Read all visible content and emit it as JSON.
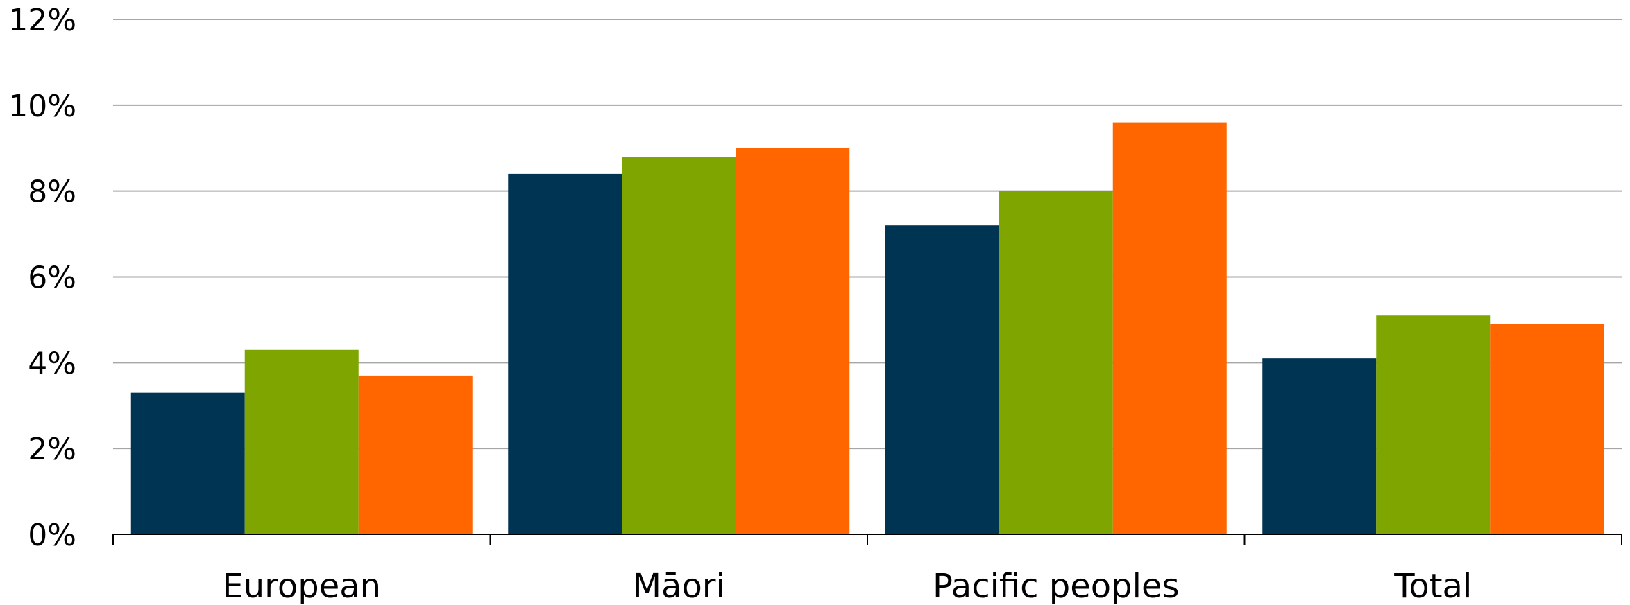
{
  "chart_data": {
    "type": "bar",
    "categories": [
      "European",
      "Māori",
      "Pacific peoples",
      "Total"
    ],
    "series": [
      {
        "values": [
          3.3,
          8.4,
          7.2,
          4.1
        ],
        "color": "#003453"
      },
      {
        "values": [
          4.3,
          8.8,
          8.0,
          5.1
        ],
        "color": "#7fa600"
      },
      {
        "values": [
          3.7,
          9.0,
          9.6,
          4.9
        ],
        "color": "#ff6600"
      }
    ],
    "ylim": [
      0,
      12
    ],
    "yticks": [
      0,
      2,
      4,
      6,
      8,
      10,
      12
    ],
    "ytick_labels": [
      "0%",
      "2%",
      "4%",
      "6%",
      "8%",
      "10%",
      "12%"
    ],
    "grid": true,
    "title": "",
    "xlabel": "",
    "ylabel": ""
  }
}
